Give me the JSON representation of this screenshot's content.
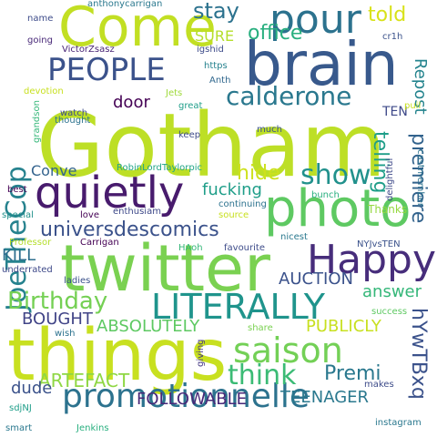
{
  "words": [
    {
      "text": "Gotham",
      "color": "#bddf26"
    },
    {
      "text": "brain",
      "color": "#38598c"
    },
    {
      "text": "twitter",
      "color": "#7ad151"
    },
    {
      "text": "things",
      "color": "#c8e020"
    },
    {
      "text": "Come",
      "color": "#c2df23"
    },
    {
      "text": "photo",
      "color": "#5ec962"
    },
    {
      "text": "quietly",
      "color": "#481b6d"
    },
    {
      "text": "promotionnelle",
      "color": "#2c728e"
    },
    {
      "text": "pour",
      "color": "#2c728e"
    },
    {
      "text": "PEOPLE",
      "color": "#3b528b"
    },
    {
      "text": "LITERALLY",
      "color": "#1f948c"
    },
    {
      "text": "Happy",
      "color": "#472d7b"
    },
    {
      "text": "saison",
      "color": "#73d056"
    },
    {
      "text": "JoeTheCop",
      "color": "#26828e"
    },
    {
      "text": "calderone",
      "color": "#2a788e"
    },
    {
      "text": "universdescomics",
      "color": "#3b528b"
    },
    {
      "text": "show",
      "color": "#21918c"
    },
    {
      "text": "think",
      "color": "#3bbb75"
    },
    {
      "text": "Birthday",
      "color": "#75d054"
    },
    {
      "text": "premiere",
      "color": "#33638d"
    },
    {
      "text": "telling",
      "color": "#1f9e89"
    },
    {
      "text": "hYwTBxq",
      "color": "#3b528b"
    },
    {
      "text": "stay",
      "color": "#2c728e"
    },
    {
      "text": "office",
      "color": "#29af7f"
    },
    {
      "text": "told",
      "color": "#d8e219"
    },
    {
      "text": "Repost",
      "color": "#25848e"
    },
    {
      "text": "hide",
      "color": "#cde11d"
    },
    {
      "text": "fucking",
      "color": "#1f9e89"
    },
    {
      "text": "ABSOLUTELY",
      "color": "#5ec962"
    },
    {
      "text": "ARTEFACT",
      "color": "#8fd744"
    },
    {
      "text": "Premi",
      "color": "#2a788e"
    },
    {
      "text": "dude",
      "color": "#3b528b"
    },
    {
      "text": "FOLLOWABLE",
      "color": "#482878"
    },
    {
      "text": "TEENAGER",
      "color": "#2a788e"
    },
    {
      "text": "BOUGHT",
      "color": "#414487"
    },
    {
      "text": "AUCTION",
      "color": "#3b528b"
    },
    {
      "text": "PUBLICLY",
      "color": "#c8e020"
    },
    {
      "text": "KILL",
      "color": "#2e6e8e"
    },
    {
      "text": "answer",
      "color": "#35b779"
    },
    {
      "text": "door",
      "color": "#440154"
    },
    {
      "text": "Conve",
      "color": "#33638d"
    },
    {
      "text": "SURE",
      "color": "#b5de2b"
    },
    {
      "text": "TEN",
      "color": "#3e4989"
    },
    {
      "text": "NYJvsTEN",
      "color": "#3b528b"
    },
    {
      "text": "Thanks",
      "color": "#95d840"
    },
    {
      "text": "success",
      "color": "#5ec962"
    },
    {
      "text": "makes",
      "color": "#3e4c8a"
    },
    {
      "text": "instagram",
      "color": "#2a788e"
    },
    {
      "text": "anthonycarrigan",
      "color": "#2a788e"
    },
    {
      "text": "VictorZsasz",
      "color": "#482475"
    },
    {
      "text": "RobinLordTaylorpic",
      "color": "#20a486"
    },
    {
      "text": "Professor",
      "color": "#b5de2b"
    },
    {
      "text": "Carrigan",
      "color": "#440154"
    },
    {
      "text": "HAoh",
      "color": "#35b779"
    },
    {
      "text": "favourite",
      "color": "#3e4c8a"
    },
    {
      "text": "nicest",
      "color": "#2a788e"
    },
    {
      "text": "enthusiam",
      "color": "#3e4989"
    },
    {
      "text": "continuing",
      "color": "#2c728e"
    },
    {
      "text": "source",
      "color": "#c8e020"
    },
    {
      "text": "love",
      "color": "#440154"
    },
    {
      "text": "special",
      "color": "#21918c"
    },
    {
      "text": "best",
      "color": "#440154"
    },
    {
      "text": "underrated",
      "color": "#3e4989"
    },
    {
      "text": "ladies",
      "color": "#3b528b"
    },
    {
      "text": "wish",
      "color": "#2c728e"
    },
    {
      "text": "share",
      "color": "#7ad151"
    },
    {
      "text": "giving",
      "color": "#453882"
    },
    {
      "text": "sdjNJ",
      "color": "#1f9e89"
    },
    {
      "text": "smart",
      "color": "#2a788e"
    },
    {
      "text": "Jenkins",
      "color": "#29af7f"
    },
    {
      "text": "keep",
      "color": "#3e4c8a"
    },
    {
      "text": "much",
      "color": "#3b528b"
    },
    {
      "text": "great",
      "color": "#1f9e89"
    },
    {
      "text": "Jets",
      "color": "#9fda3a"
    },
    {
      "text": "Anth",
      "color": "#31688e"
    },
    {
      "text": "https",
      "color": "#26828e"
    },
    {
      "text": "igshid",
      "color": "#3e4c8a"
    },
    {
      "text": "cr1h",
      "color": "#3b528b"
    },
    {
      "text": "puil",
      "color": "#c8e020"
    },
    {
      "text": "name",
      "color": "#3e4c8a"
    },
    {
      "text": "going",
      "color": "#482878"
    },
    {
      "text": "devotion",
      "color": "#c8e020"
    },
    {
      "text": "watch",
      "color": "#3e4c8a"
    },
    {
      "text": "thought",
      "color": "#2c728e"
    },
    {
      "text": "grandson",
      "color": "#35b779"
    },
    {
      "text": "delightful",
      "color": "#3e4989"
    },
    {
      "text": "castmember",
      "color": "#2c728e"
    },
    {
      "text": "bunch",
      "color": "#29af7f"
    }
  ]
}
